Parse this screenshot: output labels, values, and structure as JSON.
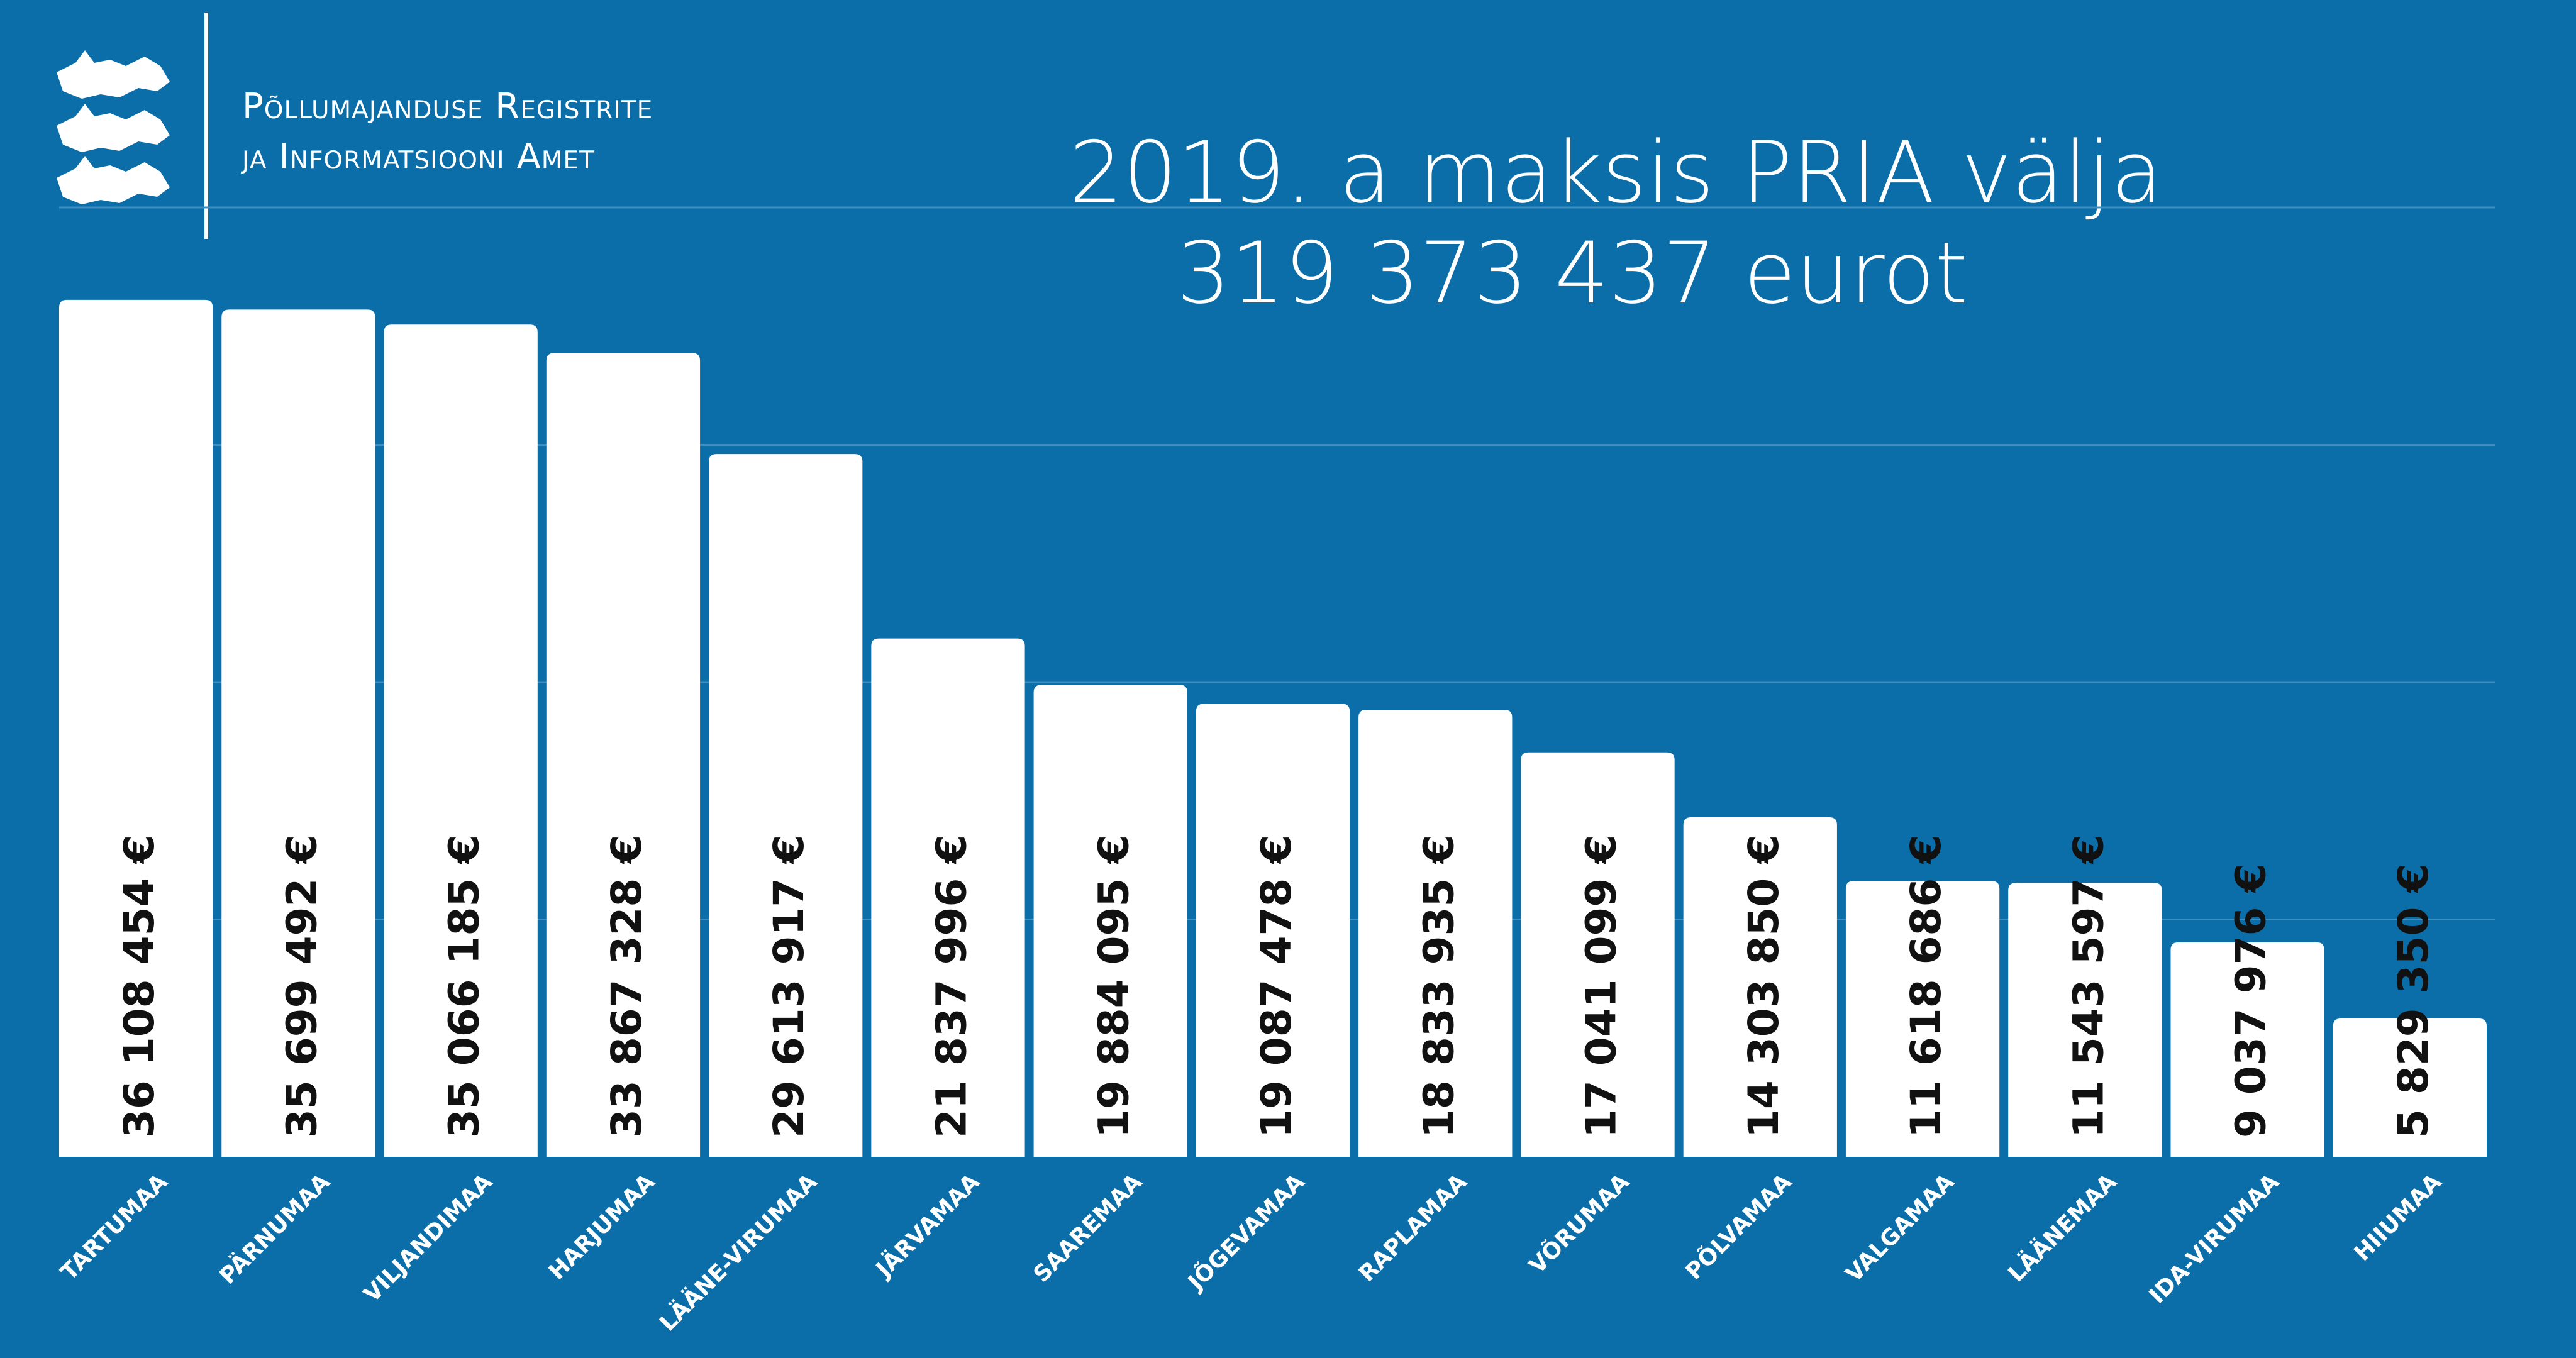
{
  "header": {
    "org_line_1": "Põllumajanduse Registrite",
    "org_line_2": "ja Informatsiooni Amet",
    "logo_icon": "three-lions-coat-of-arms-icon"
  },
  "headline": {
    "line_1": "2019. a maksis PRIA välja",
    "line_2": "319 373 437 eurot"
  },
  "colors": {
    "background": "#0b6ea8",
    "bar": "#ffffff",
    "value_label": "#111111",
    "category_label": "#ffffff",
    "grid": "#3d8fc2"
  },
  "chart_data": {
    "type": "bar",
    "title": "2019. a maksis PRIA välja 319 373 437 eurot",
    "xlabel": "",
    "ylabel": "",
    "ylim": [
      0,
      40000000
    ],
    "grid": true,
    "legend": "none",
    "categories": [
      "TARTUMAA",
      "PÄRNUMAA",
      "VILJANDIMAA",
      "HARJUMAA",
      "LÄÄNE-VIRUMAA",
      "JÄRVAMAA",
      "SAAREMAA",
      "JÕGEVAMAA",
      "RAPLAMAA",
      "VÕRUMAA",
      "PÕLVAMAA",
      "VALGAMAA",
      "LÄÄNEMAA",
      "IDA-VIRUMAA",
      "HIIUMAA"
    ],
    "values": [
      36108454,
      35699492,
      35066185,
      33867328,
      29613917,
      21837996,
      19884095,
      19087478,
      18833935,
      17041099,
      14303850,
      11618686,
      11543597,
      9037976,
      5829350
    ],
    "value_labels": [
      "36 108 454 €",
      "35 699 492 €",
      "35 066 185 €",
      "33 867 328 €",
      "29 613 917 €",
      "21 837 996 €",
      "19 884 095 €",
      "19 087 478 €",
      "18 833 935 €",
      "17 041 099 €",
      "14 303 850 €",
      "11 618 686 €",
      "11 543 597 €",
      "9 037 976 €",
      "5 829 350 €"
    ]
  }
}
